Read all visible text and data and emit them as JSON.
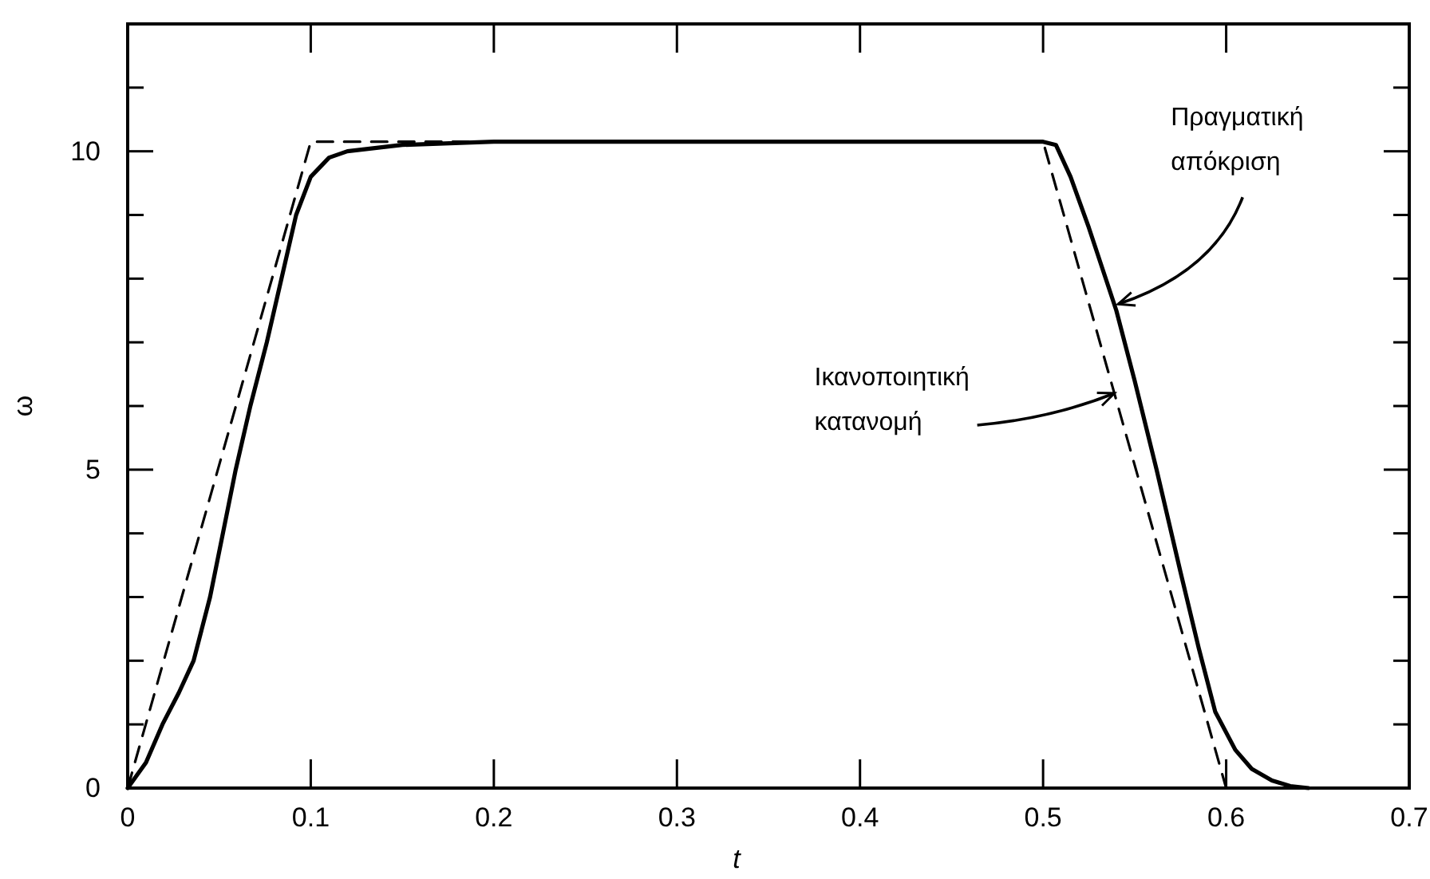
{
  "chart_data": {
    "type": "line",
    "xlabel": "t",
    "ylabel": "ω",
    "xlim": [
      0,
      0.7
    ],
    "ylim": [
      0,
      12
    ],
    "xticks": [
      {
        "value": 0,
        "label": "0"
      },
      0.1,
      0.2,
      0.3,
      0.4,
      0.5,
      0.6,
      0.7
    ],
    "yticks": [
      {
        "value": 0,
        "label": "0"
      },
      {
        "value": 1,
        "label": null
      },
      {
        "value": 2,
        "label": null
      },
      {
        "value": 3,
        "label": null
      },
      {
        "value": 4,
        "label": null
      },
      5,
      {
        "value": 6,
        "label": null
      },
      {
        "value": 7,
        "label": null
      },
      {
        "value": 8,
        "label": null
      },
      {
        "value": 9,
        "label": null
      },
      10,
      {
        "value": 11,
        "label": null
      },
      {
        "value": 12,
        "label": null
      }
    ],
    "grid": false,
    "marker": "none",
    "series": [
      {
        "color": "#000000",
        "line_style": "solid",
        "x": [
          0,
          0.01,
          0.019,
          0.028,
          0.036,
          0.045,
          0.052,
          0.059,
          0.067,
          0.076,
          0.084,
          0.092,
          0.1,
          0.11,
          0.12,
          0.15,
          0.2,
          0.5,
          0.507,
          0.515,
          0.525,
          0.54,
          0.55,
          0.562,
          0.575,
          0.585,
          0.594,
          0.605,
          0.614,
          0.625,
          0.635,
          0.645
        ],
        "values": [
          0,
          0.4,
          1,
          1.5,
          2,
          3,
          4,
          5,
          6,
          7,
          8,
          9,
          9.6,
          9.9,
          10,
          10.1,
          10.15,
          10.15,
          10.1,
          9.6,
          8.8,
          7.5,
          6.4,
          5,
          3.4,
          2.2,
          1.2,
          0.6,
          0.3,
          0.12,
          0.03,
          0
        ]
      },
      {
        "color": "#000000",
        "line_style": "dashed",
        "x": [
          0,
          0.1,
          0.5,
          0.6
        ],
        "values": [
          0,
          10.15,
          10.15,
          0
        ]
      }
    ],
    "annotations": [
      {
        "text": "Πραγματική\nαπόκριση",
        "x": 0.541,
        "y": 7.6
      },
      {
        "text": "Ικανοποιητική\nκατανομή",
        "x": 0.539,
        "y": 6.2
      }
    ]
  }
}
